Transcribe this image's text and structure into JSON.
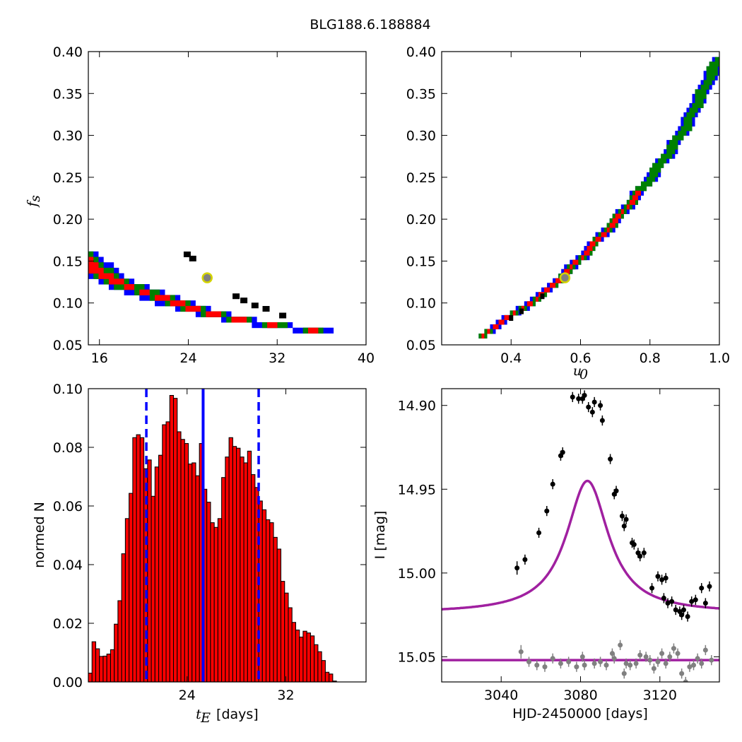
{
  "figure_title": "BLG188.6.188884",
  "colors": {
    "blue": "#0000ff",
    "green": "#008000",
    "red": "#ff0000",
    "black": "#000000",
    "marker_face": "#808080",
    "marker_edge": "#d4d400",
    "model_line": "#a020a0",
    "data_gray": "#808080",
    "bar_face": "#ff0000"
  },
  "chart_data": [
    {
      "id": "fs_vs_tE",
      "type": "heatmap",
      "xlabel": "",
      "ylabel_main": "f",
      "ylabel_sub": "s",
      "xlim": [
        15,
        40
      ],
      "ylim": [
        0.05,
        0.4
      ],
      "xticks": [
        16,
        24,
        32,
        40
      ],
      "xtick_labels": [
        "16",
        "24",
        "32",
        "40"
      ],
      "yticks": [
        0.05,
        0.1,
        0.15,
        0.2,
        0.25,
        0.3,
        0.35,
        0.4
      ],
      "ytick_labels": [
        "0.05",
        "0.10",
        "0.15",
        "0.20",
        "0.25",
        "0.30",
        "0.35",
        "0.40"
      ],
      "curve": {
        "a": 1.88,
        "b": -0.95
      },
      "band_widths": {
        "blue": 1.55,
        "green": 1.05,
        "red": 0.55
      },
      "red_fs_max": 0.26,
      "black_cells": [
        [
          23.9,
          0.158
        ],
        [
          24.4,
          0.153
        ],
        [
          28.3,
          0.108
        ],
        [
          29.0,
          0.103
        ],
        [
          30.0,
          0.097
        ],
        [
          31.0,
          0.093
        ],
        [
          32.5,
          0.085
        ]
      ],
      "best_fit": {
        "x": 25.7,
        "y": 0.13
      },
      "grid": false
    },
    {
      "id": "fs_vs_u0",
      "type": "heatmap",
      "xlabel_main": "u",
      "xlabel_sub": "0",
      "ylabel": "",
      "xlim": [
        0.2,
        1.0
      ],
      "ylim": [
        0.05,
        0.4
      ],
      "xticks": [
        0.4,
        0.6,
        0.8,
        1.0
      ],
      "xtick_labels": [
        "0.4",
        "0.6",
        "0.8",
        "1.0"
      ],
      "yticks": [
        0.05,
        0.1,
        0.15,
        0.2,
        0.25,
        0.3,
        0.35,
        0.4
      ],
      "ytick_labels": [
        "0.05",
        "0.10",
        "0.15",
        "0.20",
        "0.25",
        "0.30",
        "0.35",
        "0.40"
      ],
      "curve": [
        [
          0.32,
          0.06
        ],
        [
          0.4,
          0.082
        ],
        [
          0.5,
          0.11
        ],
        [
          0.55,
          0.13
        ],
        [
          0.6,
          0.15
        ],
        [
          0.7,
          0.195
        ],
        [
          0.8,
          0.245
        ],
        [
          0.9,
          0.305
        ],
        [
          1.0,
          0.39
        ]
      ],
      "band_widths": {
        "blue": 0.017,
        "green": 0.012,
        "red": 0.0065
      },
      "red_u0_max": 0.77,
      "black_cells": [
        [
          0.4,
          0.082
        ],
        [
          0.43,
          0.09
        ],
        [
          0.49,
          0.108
        ],
        [
          0.55,
          0.13
        ]
      ],
      "best_fit": {
        "x": 0.555,
        "y": 0.13
      },
      "grid": false
    },
    {
      "id": "tE_histogram",
      "type": "bar",
      "xlabel_main": "t",
      "xlabel_sub": "E",
      "xlabel_suffix": " [days]",
      "ylabel": "normed N",
      "xlim": [
        16.0,
        38.5
      ],
      "ylim": [
        0.0,
        0.1
      ],
      "xticks": [
        24,
        32
      ],
      "xtick_labels": [
        "24",
        "32"
      ],
      "yticks": [
        0.0,
        0.02,
        0.04,
        0.06,
        0.08,
        0.1
      ],
      "ytick_labels": [
        "0.00",
        "0.02",
        "0.04",
        "0.06",
        "0.08",
        "0.10"
      ],
      "bin_start": 16.0,
      "bin_width": 0.3,
      "values": [
        0.003,
        0.0137,
        0.0113,
        0.0087,
        0.0088,
        0.0095,
        0.011,
        0.0197,
        0.0277,
        0.0437,
        0.0557,
        0.0643,
        0.0833,
        0.0843,
        0.0833,
        0.0727,
        0.0757,
        0.0633,
        0.0733,
        0.0773,
        0.0877,
        0.0887,
        0.0977,
        0.0967,
        0.0853,
        0.0827,
        0.0813,
        0.0743,
        0.0747,
        0.0703,
        0.0813,
        0.0657,
        0.0613,
        0.0543,
        0.0527,
        0.0557,
        0.0697,
        0.0767,
        0.0833,
        0.0803,
        0.0797,
        0.0767,
        0.0747,
        0.0787,
        0.0707,
        0.0663,
        0.0617,
        0.0587,
        0.0553,
        0.0543,
        0.0493,
        0.0453,
        0.0343,
        0.0303,
        0.0253,
        0.0203,
        0.0177,
        0.0153,
        0.0173,
        0.0167,
        0.0157,
        0.0127,
        0.0103,
        0.0073,
        0.0033,
        0.0027,
        0.0003
      ],
      "median_line": 25.3,
      "bound_lines": [
        20.7,
        29.8
      ],
      "grid": false
    },
    {
      "id": "light_curve",
      "type": "scatter",
      "xlabel": "HJD-2450000 [days]",
      "ylabel": "I [mag]",
      "xlim": [
        3010,
        3150
      ],
      "ylim": [
        15.065,
        14.89
      ],
      "xticks": [
        3040,
        3080,
        3120
      ],
      "xtick_labels": [
        "3040",
        "3080",
        "3120"
      ],
      "yticks": [
        14.9,
        14.95,
        15.0,
        15.05
      ],
      "ytick_labels": [
        "14.90",
        "14.95",
        "15.00",
        "15.05"
      ],
      "model": {
        "t0": 3083.5,
        "amplitude": 0.0745,
        "width": 15.0,
        "baseline": 15.021,
        "offset_baseline": 15.052
      },
      "black_points": [
        [
          3048,
          14.997,
          0.004
        ],
        [
          3052,
          14.992,
          0.003
        ],
        [
          3059,
          14.976,
          0.003
        ],
        [
          3063,
          14.963,
          0.003
        ],
        [
          3066,
          14.947,
          0.003
        ],
        [
          3070,
          14.93,
          0.003
        ],
        [
          3071,
          14.928,
          0.003
        ],
        [
          3076,
          14.895,
          0.003
        ],
        [
          3079,
          14.896,
          0.003
        ],
        [
          3081,
          14.896,
          0.003
        ],
        [
          3082,
          14.894,
          0.003
        ],
        [
          3084,
          14.901,
          0.003
        ],
        [
          3086,
          14.904,
          0.003
        ],
        [
          3087,
          14.898,
          0.003
        ],
        [
          3090,
          14.9,
          0.003
        ],
        [
          3091,
          14.909,
          0.003
        ],
        [
          3095,
          14.932,
          0.003
        ],
        [
          3097,
          14.953,
          0.003
        ],
        [
          3098,
          14.951,
          0.003
        ],
        [
          3101,
          14.966,
          0.003
        ],
        [
          3102,
          14.972,
          0.003
        ],
        [
          3103,
          14.968,
          0.003
        ],
        [
          3106,
          14.982,
          0.003
        ],
        [
          3107,
          14.983,
          0.003
        ],
        [
          3109,
          14.988,
          0.003
        ],
        [
          3110,
          14.99,
          0.003
        ],
        [
          3112,
          14.988,
          0.003
        ],
        [
          3116,
          15.009,
          0.003
        ],
        [
          3119,
          15.002,
          0.003
        ],
        [
          3121,
          15.004,
          0.003
        ],
        [
          3122,
          15.015,
          0.003
        ],
        [
          3123,
          15.003,
          0.003
        ],
        [
          3124,
          15.018,
          0.003
        ],
        [
          3126,
          15.017,
          0.003
        ],
        [
          3128,
          15.022,
          0.003
        ],
        [
          3130,
          15.023,
          0.003
        ],
        [
          3131,
          15.025,
          0.003
        ],
        [
          3132,
          15.022,
          0.003
        ],
        [
          3134,
          15.026,
          0.003
        ],
        [
          3136,
          15.017,
          0.003
        ],
        [
          3138,
          15.016,
          0.003
        ],
        [
          3141,
          15.009,
          0.003
        ],
        [
          3143,
          15.018,
          0.003
        ],
        [
          3145,
          15.008,
          0.003
        ]
      ],
      "gray_points": [
        [
          3050,
          15.047,
          0.004
        ],
        [
          3054,
          15.053,
          0.003
        ],
        [
          3058,
          15.055,
          0.003
        ],
        [
          3062,
          15.056,
          0.003
        ],
        [
          3066,
          15.051,
          0.003
        ],
        [
          3070,
          15.054,
          0.003
        ],
        [
          3074,
          15.053,
          0.003
        ],
        [
          3078,
          15.056,
          0.003
        ],
        [
          3081,
          15.05,
          0.003
        ],
        [
          3082,
          15.055,
          0.003
        ],
        [
          3087,
          15.054,
          0.003
        ],
        [
          3090,
          15.053,
          0.003
        ],
        [
          3093,
          15.055,
          0.003
        ],
        [
          3096,
          15.048,
          0.003
        ],
        [
          3097,
          15.051,
          0.003
        ],
        [
          3100,
          15.043,
          0.003
        ],
        [
          3102,
          15.06,
          0.003
        ],
        [
          3103,
          15.054,
          0.003
        ],
        [
          3105,
          15.055,
          0.003
        ],
        [
          3108,
          15.054,
          0.003
        ],
        [
          3110,
          15.049,
          0.003
        ],
        [
          3113,
          15.05,
          0.003
        ],
        [
          3115,
          15.052,
          0.003
        ],
        [
          3117,
          15.057,
          0.003
        ],
        [
          3119,
          15.053,
          0.003
        ],
        [
          3121,
          15.048,
          0.003
        ],
        [
          3123,
          15.054,
          0.003
        ],
        [
          3125,
          15.05,
          0.003
        ],
        [
          3127,
          15.045,
          0.003
        ],
        [
          3129,
          15.048,
          0.003
        ],
        [
          3131,
          15.06,
          0.003
        ],
        [
          3133,
          15.065,
          0.003
        ],
        [
          3135,
          15.056,
          0.003
        ],
        [
          3137,
          15.055,
          0.003
        ],
        [
          3139,
          15.051,
          0.003
        ],
        [
          3141,
          15.054,
          0.003
        ],
        [
          3143,
          15.046,
          0.003
        ],
        [
          3146,
          15.052,
          0.003
        ]
      ],
      "grid": false
    }
  ]
}
